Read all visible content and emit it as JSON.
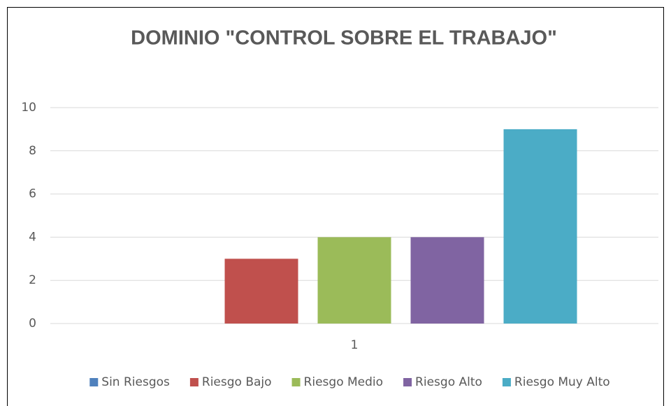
{
  "chart_data": {
    "type": "bar",
    "title": "DOMINIO \"CONTROL SOBRE EL TRABAJO\"",
    "categories": [
      "1"
    ],
    "series": [
      {
        "name": "Sin Riesgos",
        "color": "#4f81bd",
        "values": [
          0
        ]
      },
      {
        "name": "Riesgo Bajo",
        "color": "#c0504d",
        "values": [
          3
        ]
      },
      {
        "name": "Riesgo Medio",
        "color": "#9bbb59",
        "values": [
          4
        ]
      },
      {
        "name": "Riesgo Alto",
        "color": "#8064a2",
        "values": [
          4
        ]
      },
      {
        "name": "Riesgo Muy Alto",
        "color": "#4bacc6",
        "values": [
          9
        ]
      }
    ],
    "ylim": [
      0,
      10
    ],
    "yticks": [
      0,
      2,
      4,
      6,
      8,
      10
    ],
    "grid": true,
    "legend": "bottom"
  }
}
